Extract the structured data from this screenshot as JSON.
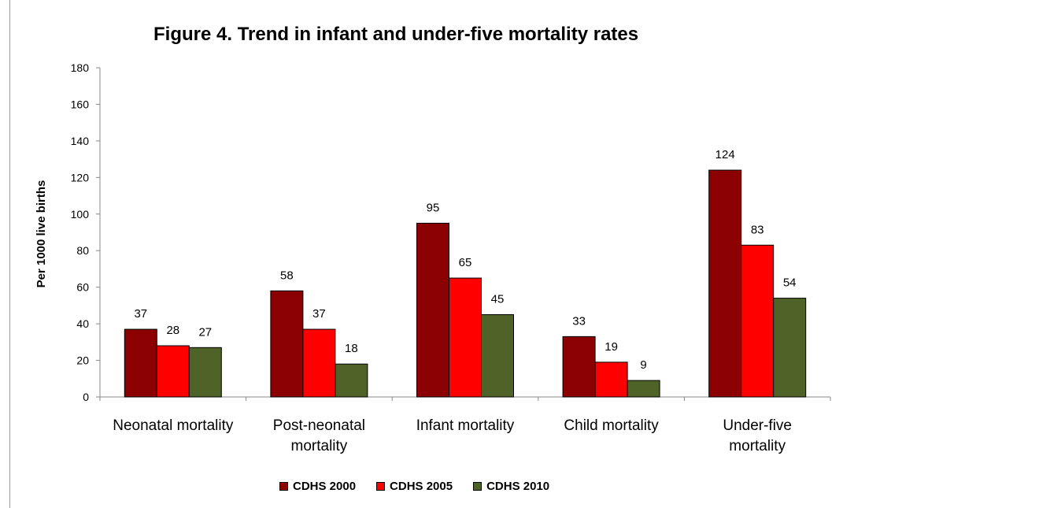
{
  "chart_data": {
    "type": "bar",
    "title": "Figure 4. Trend in infant and under-five mortality rates",
    "ylabel": "Per 1000  live births",
    "xlabel": "",
    "ylim": [
      0,
      180
    ],
    "yticks": [
      0,
      20,
      40,
      60,
      80,
      100,
      120,
      140,
      160,
      180
    ],
    "grid": false,
    "legend_position": "bottom",
    "categories": [
      [
        "Neonatal mortality"
      ],
      [
        "Post-neonatal",
        "mortality"
      ],
      [
        "Infant mortality"
      ],
      [
        "Child mortality"
      ],
      [
        "Under-five",
        "mortality"
      ]
    ],
    "series": [
      {
        "name": "CDHS 2000",
        "color": "#8B0000",
        "values": [
          37,
          58,
          95,
          33,
          124
        ]
      },
      {
        "name": "CDHS 2005",
        "color": "#FF0000",
        "values": [
          28,
          37,
          65,
          19,
          83
        ]
      },
      {
        "name": "CDHS 2010",
        "color": "#4F6228",
        "values": [
          27,
          18,
          45,
          9,
          54
        ]
      }
    ]
  }
}
